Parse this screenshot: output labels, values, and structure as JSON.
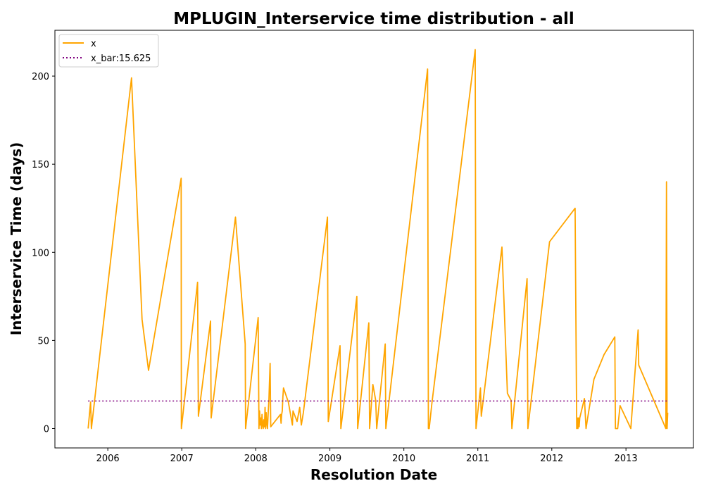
{
  "chart_data": {
    "type": "line",
    "title": "MPLUGIN_Interservice time distribution - all",
    "xlabel": "Resolution Date",
    "ylabel": "Interservice Time (days)",
    "xlim": [
      "2005-04-15",
      "2013-11-30"
    ],
    "ylim": [
      -11,
      226
    ],
    "xticks": [
      "2006",
      "2007",
      "2008",
      "2009",
      "2010",
      "2011",
      "2012",
      "2013"
    ],
    "yticks": [
      0,
      50,
      100,
      150,
      200
    ],
    "grid": false,
    "legend_position": "upper left",
    "colors": {
      "x": "#ffa500",
      "x_bar": "#800080"
    },
    "series": [
      {
        "name": "x",
        "style": "solid",
        "x": [
          "2005-09-26",
          "2005-10-08",
          "2005-10-12",
          "2006-04-28",
          "2006-06-19",
          "2006-07-21",
          "2006-12-29",
          "2006-12-30",
          "2007-03-20",
          "2007-03-24",
          "2007-05-23",
          "2007-05-26",
          "2007-09-23",
          "2007-11-10",
          "2007-11-12",
          "2008-01-13",
          "2008-01-17",
          "2008-01-20",
          "2008-01-23",
          "2008-01-26",
          "2008-01-29",
          "2008-02-01",
          "2008-02-04",
          "2008-02-07",
          "2008-02-10",
          "2008-02-13",
          "2008-02-16",
          "2008-02-19",
          "2008-02-22",
          "2008-02-25",
          "2008-02-28",
          "2008-03-03",
          "2008-03-06",
          "2008-03-09",
          "2008-03-12",
          "2008-03-15",
          "2008-05-02",
          "2008-05-05",
          "2008-05-08",
          "2008-05-11",
          "2008-05-14",
          "2008-05-17",
          "2008-06-10",
          "2008-06-30",
          "2008-07-03",
          "2008-07-23",
          "2008-08-05",
          "2008-08-13",
          "2008-08-23",
          "2008-12-20",
          "2008-12-24",
          "2009-02-20",
          "2009-02-24",
          "2009-05-14",
          "2009-05-18",
          "2009-07-12",
          "2009-07-16",
          "2009-08-01",
          "2009-08-15",
          "2009-08-20",
          "2009-10-01",
          "2009-10-04",
          "2010-04-28",
          "2010-05-02",
          "2010-05-06",
          "2010-05-19",
          "2010-12-19",
          "2010-12-23",
          "2011-01-14",
          "2011-01-18",
          "2011-04-30",
          "2011-05-27",
          "2011-06-14",
          "2011-06-18",
          "2011-09-01",
          "2011-09-05",
          "2011-12-21",
          "2012-04-25",
          "2012-05-03",
          "2012-05-06",
          "2012-05-09",
          "2012-05-12",
          "2012-05-15",
          "2012-05-18",
          "2012-06-10",
          "2012-06-18",
          "2012-06-26",
          "2012-07-27",
          "2012-09-15",
          "2012-11-07",
          "2012-11-10",
          "2012-11-21",
          "2012-12-03",
          "2013-01-25",
          "2013-03-02",
          "2013-03-05",
          "2013-07-17",
          "2013-07-20",
          "2013-07-23",
          "2013-07-26"
        ],
        "values": [
          0,
          15,
          0,
          199,
          62,
          33,
          142,
          0,
          83,
          7,
          61,
          6,
          120,
          48,
          0,
          63,
          0,
          10,
          2,
          6,
          0,
          8,
          2,
          0,
          5,
          1,
          12,
          0,
          9,
          3,
          0,
          10,
          16,
          27,
          37,
          1,
          8,
          3,
          8,
          10,
          18,
          23,
          15,
          2,
          10,
          4,
          12,
          2,
          9,
          120,
          4,
          47,
          0,
          75,
          0,
          60,
          0,
          25,
          16,
          0,
          48,
          0,
          204,
          0,
          0,
          14,
          215,
          0,
          23,
          7,
          103,
          20,
          16,
          0,
          85,
          0,
          106,
          125,
          0,
          6,
          0,
          6,
          1,
          6,
          17,
          0,
          6,
          28,
          42,
          52,
          0,
          0,
          13,
          0,
          56,
          36,
          0,
          140,
          0,
          9
        ]
      },
      {
        "name": "x_bar:15.625",
        "style": "dotted",
        "x": [
          "2005-09-26",
          "2013-07-26"
        ],
        "values": [
          15.625,
          15.625
        ]
      }
    ]
  }
}
